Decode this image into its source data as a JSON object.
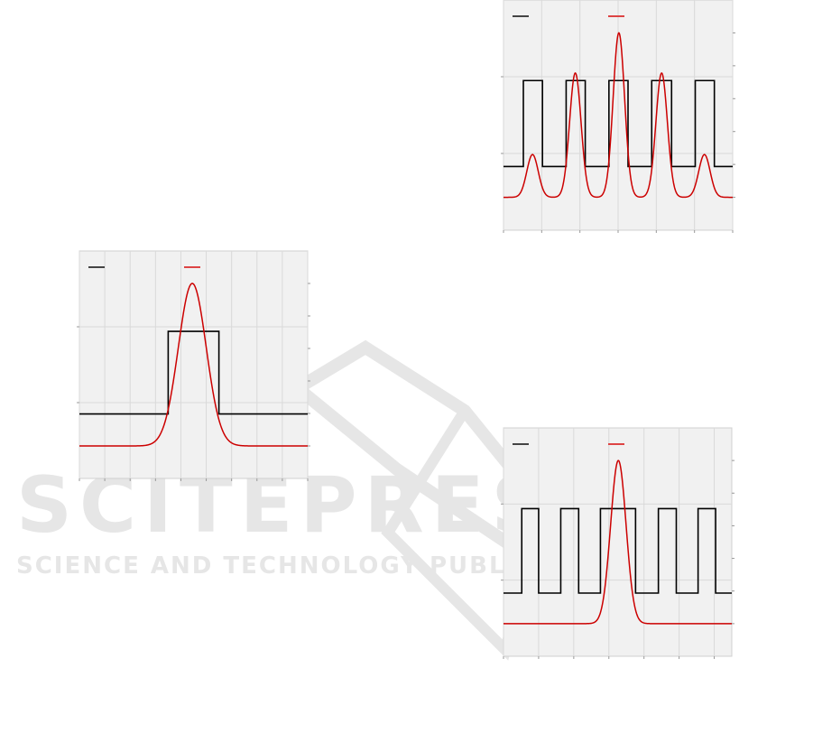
{
  "watermark": {
    "logo_text": "SCITEPRESS",
    "tagline": "SCIENCE AND TECHNOLOGY PUBLICATIONS"
  },
  "colors": {
    "step": "#000000",
    "pulse": "#cc0000",
    "plot_bg": "#f1f1f1",
    "grid": "#d9d9d9"
  },
  "chart_data": [
    {
      "type": "line",
      "grid": true,
      "legend_placement": "top",
      "xlim": [
        0,
        9
      ],
      "ylim_left": [
        -1,
        2
      ],
      "yticks_left": [
        0,
        1
      ],
      "ylim_right": [
        -1,
        6
      ],
      "yticks_right": [
        0,
        1,
        2,
        3,
        4,
        5
      ],
      "series": [
        {
          "kind": "step",
          "axis": "left",
          "low": -0.15,
          "high": 0.94,
          "pulses": [
            [
              3.5,
              5.5
            ]
          ]
        },
        {
          "kind": "gaussian",
          "axis": "right",
          "baseline": 0,
          "sigma": 0.55,
          "peaks": [
            {
              "x": 4.45,
              "amp": 5
            }
          ]
        }
      ]
    },
    {
      "type": "line",
      "grid": true,
      "legend_placement": "top",
      "xlim": [
        0,
        6
      ],
      "ylim_left": [
        -1,
        2
      ],
      "yticks_left": [
        0,
        1
      ],
      "ylim_right": [
        -1,
        6
      ],
      "yticks_right": [
        0,
        1,
        2,
        3,
        4,
        5
      ],
      "series": [
        {
          "kind": "step",
          "axis": "left",
          "low": -0.17,
          "high": 0.95,
          "pulses": [
            [
              0.52,
              1.02
            ],
            [
              1.64,
              2.14
            ],
            [
              2.76,
              3.26
            ],
            [
              3.88,
              4.4
            ],
            [
              5.02,
              5.52
            ]
          ]
        },
        {
          "kind": "gaussian",
          "axis": "right",
          "baseline": 0,
          "sigma": 0.15,
          "peaks": [
            {
              "x": 0.76,
              "amp": 1.3
            },
            {
              "x": 1.88,
              "amp": 3.78
            },
            {
              "x": 3.02,
              "amp": 5
            },
            {
              "x": 4.14,
              "amp": 3.78
            },
            {
              "x": 5.26,
              "amp": 1.3
            }
          ]
        }
      ]
    },
    {
      "type": "line",
      "grid": true,
      "legend_placement": "top",
      "xlim": [
        0,
        6.5
      ],
      "ylim_left": [
        -1,
        2
      ],
      "yticks_left": [
        0,
        1
      ],
      "ylim_right": [
        -1,
        6
      ],
      "yticks_right": [
        0,
        1,
        2,
        3,
        4,
        5
      ],
      "series": [
        {
          "kind": "step",
          "axis": "left",
          "low": -0.17,
          "high": 0.94,
          "pulses": [
            [
              0.52,
              1.0
            ],
            [
              1.63,
              2.14
            ],
            [
              2.76,
              3.76
            ],
            [
              4.41,
              4.92
            ],
            [
              5.54,
              6.04
            ]
          ]
        },
        {
          "kind": "gaussian",
          "axis": "right",
          "baseline": 0,
          "sigma": 0.22,
          "peaks": [
            {
              "x": 3.27,
              "amp": 5
            }
          ]
        }
      ]
    }
  ]
}
